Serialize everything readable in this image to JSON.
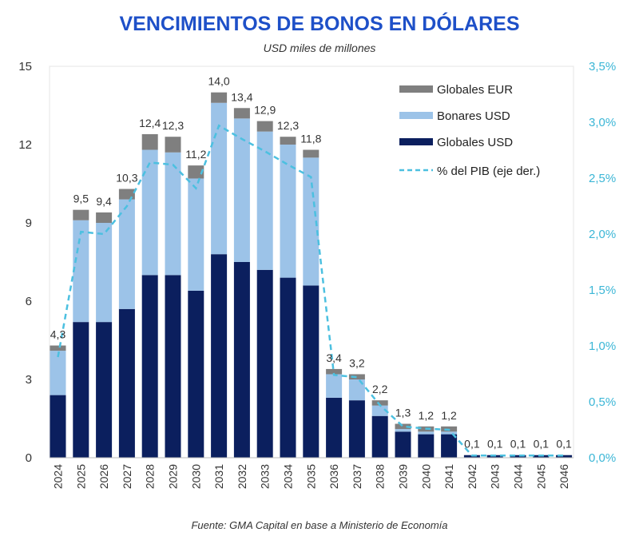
{
  "chart_data": {
    "type": "bar",
    "stacked": true,
    "title": "VENCIMIENTOS DE BONOS EN DÓLARES",
    "subtitle": "USD miles de millones",
    "source": "Fuente: GMA Capital en base a Ministerio de Economía",
    "categories": [
      "2024",
      "2025",
      "2026",
      "2027",
      "2028",
      "2029",
      "2030",
      "2031",
      "2032",
      "2033",
      "2034",
      "2035",
      "2036",
      "2037",
      "2038",
      "2039",
      "2040",
      "2041",
      "2042",
      "2043",
      "2044",
      "2045",
      "2046"
    ],
    "series": [
      {
        "name": "Globales USD",
        "color": "#0b1f5e",
        "values": [
          2.4,
          5.2,
          5.2,
          5.7,
          7.0,
          7.0,
          6.4,
          7.8,
          7.5,
          7.2,
          6.9,
          6.6,
          2.3,
          2.2,
          1.6,
          1.0,
          0.9,
          0.9,
          0.1,
          0.1,
          0.1,
          0.1,
          0.1
        ]
      },
      {
        "name": "Bonares USD",
        "color": "#9cc3e8",
        "values": [
          1.7,
          3.9,
          3.8,
          4.2,
          4.8,
          4.7,
          4.3,
          5.8,
          5.5,
          5.3,
          5.1,
          4.9,
          0.9,
          0.8,
          0.4,
          0.1,
          0.1,
          0.1,
          0,
          0,
          0,
          0,
          0
        ]
      },
      {
        "name": "Globales EUR",
        "color": "#7f7f7f",
        "values": [
          0.2,
          0.4,
          0.4,
          0.4,
          0.6,
          0.6,
          0.5,
          0.4,
          0.4,
          0.4,
          0.3,
          0.3,
          0.2,
          0.2,
          0.2,
          0.2,
          0.2,
          0.2,
          0,
          0,
          0,
          0,
          0
        ]
      }
    ],
    "totals_labels": [
      "4,3",
      "9,5",
      "9,4",
      "10,3",
      "12,4",
      "12,3",
      "11,2",
      "14,0",
      "13,4",
      "12,9",
      "12,3",
      "11,8",
      "3,4",
      "3,2",
      "2,2",
      "1,3",
      "1,2",
      "1,2",
      "0,1",
      "0,1",
      "0,1",
      "0,1",
      "0,1"
    ],
    "totals": [
      4.3,
      9.5,
      9.4,
      10.3,
      12.4,
      12.3,
      11.2,
      14.0,
      13.4,
      12.9,
      12.3,
      11.8,
      3.4,
      3.2,
      2.2,
      1.3,
      1.2,
      1.2,
      0.1,
      0.1,
      0.1,
      0.1,
      0.1
    ],
    "line": {
      "name": "% del PIB (eje der.)",
      "color": "#4cc0e0",
      "axis": "right",
      "values": [
        0.9,
        2.02,
        2.0,
        2.25,
        2.64,
        2.62,
        2.41,
        2.97,
        2.85,
        2.74,
        2.62,
        2.51,
        0.74,
        0.72,
        0.47,
        0.28,
        0.26,
        0.25,
        0.02,
        0.02,
        0.02,
        0.02,
        0.02
      ]
    },
    "legend_order": [
      "Globales EUR",
      "Bonares USD",
      "Globales USD",
      "% del PIB (eje der.)"
    ],
    "legend_position": "top-right",
    "ylim": [
      0,
      15
    ],
    "yticks": [
      "0",
      "3",
      "6",
      "9",
      "12",
      "15"
    ],
    "y2lim": [
      0,
      3.5
    ],
    "y2ticks": [
      "0,0%",
      "0,5%",
      "1,0%",
      "1,5%",
      "2,0%",
      "2,5%",
      "3,0%",
      "3,5%"
    ],
    "grid": false
  }
}
